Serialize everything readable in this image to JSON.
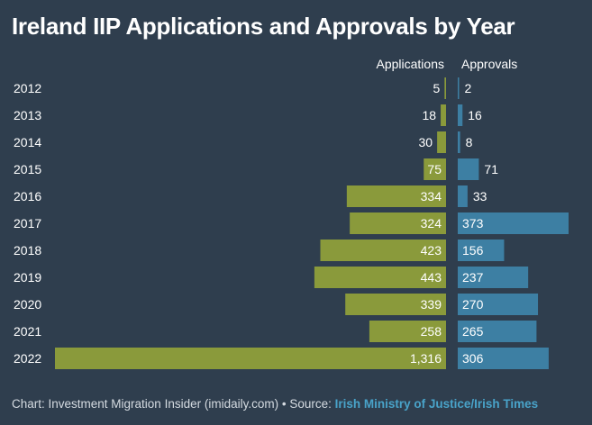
{
  "title": "Ireland IIP Applications and Approvals by Year",
  "footer": {
    "credit": "Chart: Investment Migration Insider (imidaily.com) • Source: ",
    "source": "Irish Ministry of Justice/Irish Times"
  },
  "colors": {
    "background": "#2f3e4e",
    "applications": "#8a9a3b",
    "approvals": "#3d7fa3",
    "text": "#ffffff",
    "source_link": "#49a3c9"
  },
  "chart_data": {
    "type": "bar",
    "orientation": "horizontal-diverging",
    "title": "Ireland IIP Applications and Approvals by Year",
    "categories": [
      "2012",
      "2013",
      "2014",
      "2015",
      "2016",
      "2017",
      "2018",
      "2019",
      "2020",
      "2021",
      "2022"
    ],
    "series": [
      {
        "name": "Applications",
        "values": [
          5,
          18,
          30,
          75,
          334,
          324,
          423,
          443,
          339,
          258,
          1316
        ],
        "labels": [
          "5",
          "18",
          "30",
          "75",
          "334",
          "324",
          "423",
          "443",
          "339",
          "258",
          "1,316"
        ]
      },
      {
        "name": "Approvals",
        "values": [
          2,
          16,
          8,
          71,
          33,
          373,
          156,
          237,
          270,
          265,
          306
        ],
        "labels": [
          "2",
          "16",
          "8",
          "71",
          "33",
          "373",
          "156",
          "237",
          "270",
          "265",
          "306"
        ]
      }
    ],
    "xlim": [
      0,
      1316
    ],
    "grid": false
  }
}
